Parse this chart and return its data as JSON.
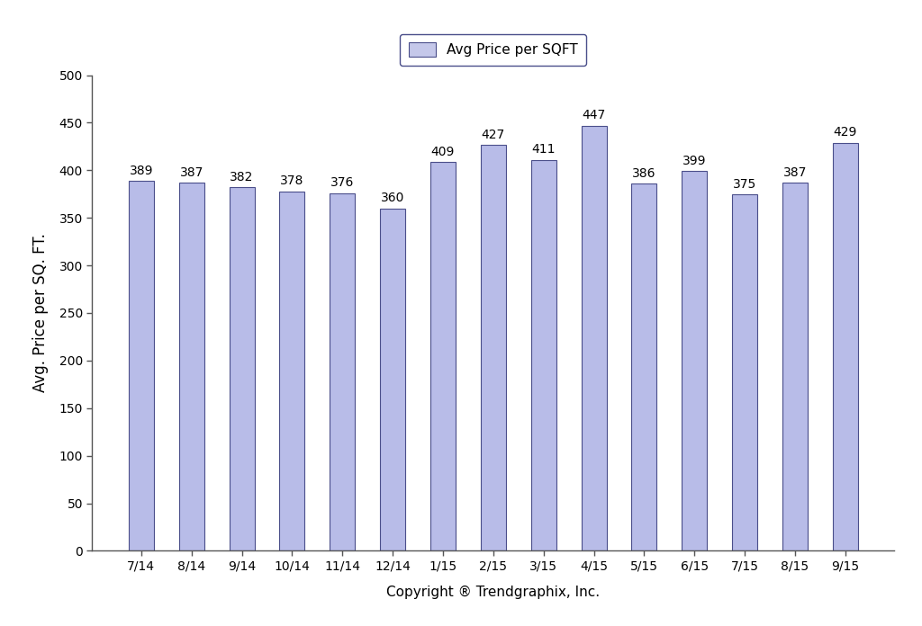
{
  "categories": [
    "7/14",
    "8/14",
    "9/14",
    "10/14",
    "11/14",
    "12/14",
    "1/15",
    "2/15",
    "3/15",
    "4/15",
    "5/15",
    "6/15",
    "7/15",
    "8/15",
    "9/15"
  ],
  "values": [
    389,
    387,
    382,
    378,
    376,
    360,
    409,
    427,
    411,
    447,
    386,
    399,
    375,
    387,
    429
  ],
  "bar_color": "#b8bce8",
  "bar_edge_color": "#4a4e8a",
  "ylabel": "Avg. Price per SQ. FT.",
  "xlabel": "Copyright ® Trendgraphix, Inc.",
  "ylim": [
    0,
    500
  ],
  "yticks": [
    0,
    50,
    100,
    150,
    200,
    250,
    300,
    350,
    400,
    450,
    500
  ],
  "legend_label": "Avg Price per SQFT",
  "legend_facecolor": "#c5c8ea",
  "legend_edgecolor": "#4a4e8a",
  "bar_label_fontsize": 10,
  "axis_label_fontsize": 12,
  "tick_fontsize": 10,
  "xlabel_fontsize": 11,
  "background_color": "#ffffff",
  "bar_width": 0.5,
  "spine_color": "#555555"
}
